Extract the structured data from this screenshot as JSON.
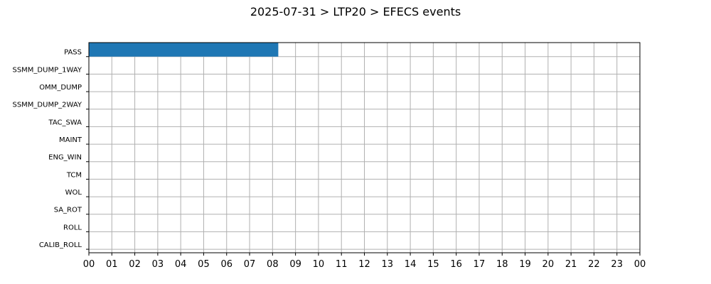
{
  "chart_data": {
    "type": "bar",
    "orientation": "horizontal",
    "title": "2025-07-31 > LTP20 > EFECS events",
    "xlabel": "",
    "ylabel": "",
    "categories": [
      "PASS",
      "SSMM_DUMP_1WAY",
      "OMM_DUMP",
      "SSMM_DUMP_2WAY",
      "TAC_SWA",
      "MAINT",
      "ENG_WIN",
      "TCM",
      "WOL",
      "SA_ROT",
      "ROLL",
      "CALIB_ROLL"
    ],
    "x_tick_labels": [
      "00",
      "01",
      "02",
      "03",
      "04",
      "05",
      "06",
      "07",
      "08",
      "09",
      "10",
      "11",
      "12",
      "13",
      "14",
      "15",
      "16",
      "17",
      "18",
      "19",
      "20",
      "21",
      "22",
      "23",
      "00"
    ],
    "xlim": [
      0,
      24
    ],
    "grid": true,
    "legend": "none",
    "bar_color": "#1f77b4",
    "events": [
      {
        "category": "PASS",
        "start": 0,
        "end": 8.25
      }
    ]
  }
}
